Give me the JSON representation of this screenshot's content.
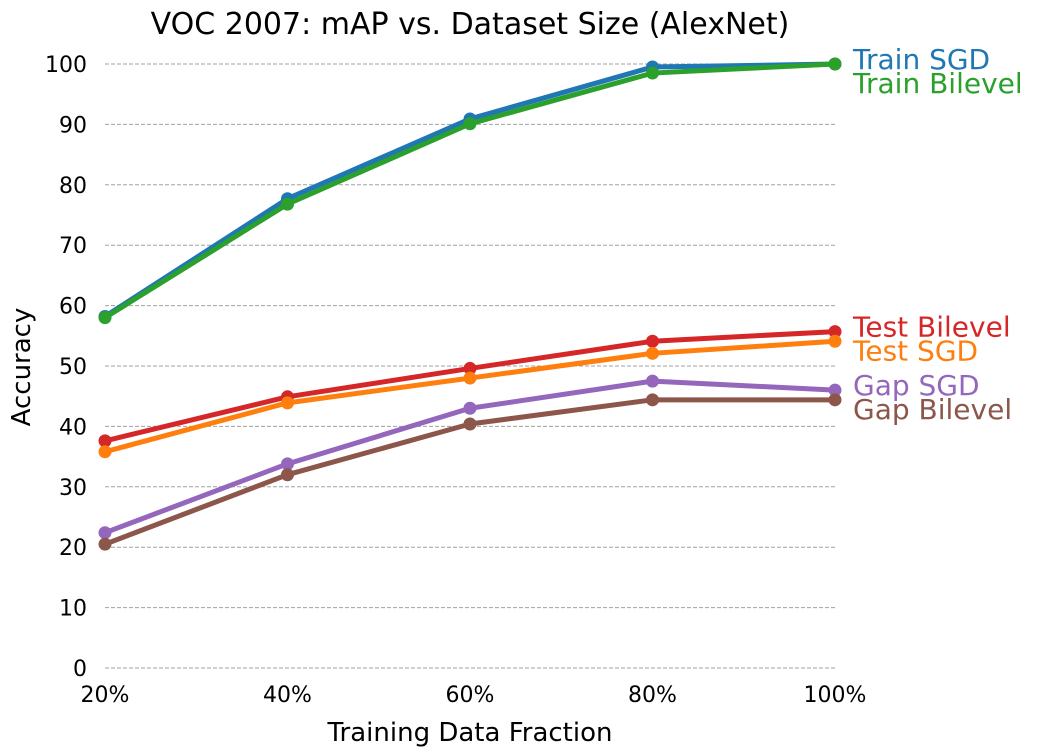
{
  "chart_data": {
    "type": "line",
    "title": "VOC 2007: mAP vs. Dataset Size (AlexNet)",
    "xlabel": "Training Data Fraction",
    "ylabel": "Accuracy",
    "categories": [
      "20%",
      "40%",
      "60%",
      "80%",
      "100%"
    ],
    "x": [
      20,
      40,
      60,
      80,
      100
    ],
    "xlim": [
      20,
      100
    ],
    "ylim": [
      0,
      100
    ],
    "yticks": [
      0,
      10,
      20,
      30,
      40,
      50,
      60,
      70,
      80,
      90,
      100
    ],
    "grid": "horizontal dashed",
    "legend": "labels at right end of lines",
    "series": [
      {
        "name": "Train SGD",
        "color": "#1f77b4",
        "values": [
          58.2,
          77.7,
          90.9,
          99.5,
          100.0
        ]
      },
      {
        "name": "Train Bilevel",
        "color": "#2ca02c",
        "values": [
          58.0,
          76.8,
          90.1,
          98.5,
          100.0
        ]
      },
      {
        "name": "Test Bilevel",
        "color": "#d62728",
        "values": [
          37.6,
          44.9,
          49.6,
          54.1,
          55.7
        ]
      },
      {
        "name": "Test SGD",
        "color": "#ff7f0e",
        "values": [
          35.8,
          43.9,
          48.0,
          52.1,
          54.1
        ]
      },
      {
        "name": "Gap SGD",
        "color": "#9467bd",
        "values": [
          22.4,
          33.8,
          43.0,
          47.5,
          46.0
        ]
      },
      {
        "name": "Gap Bilevel",
        "color": "#8c564b",
        "values": [
          20.5,
          32.0,
          40.4,
          44.4,
          44.4
        ]
      }
    ]
  }
}
